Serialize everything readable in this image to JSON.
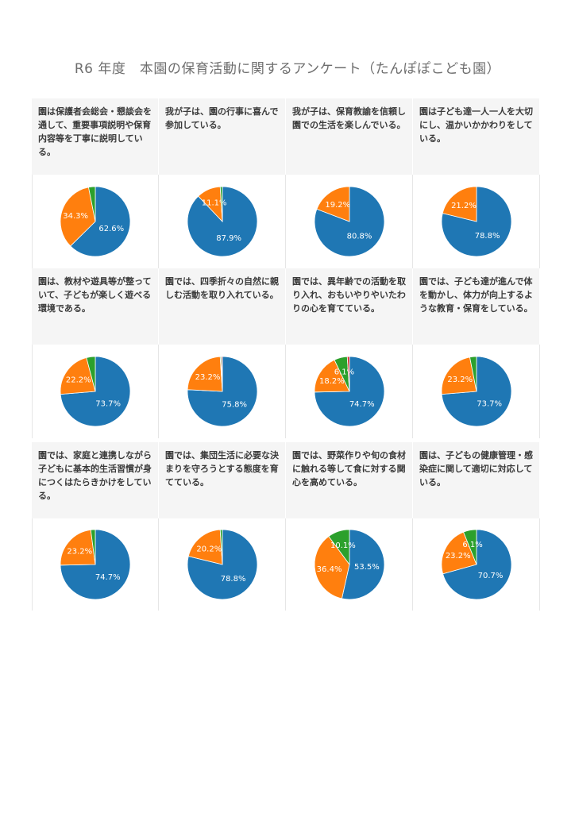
{
  "title": "R6 年度　本園の保育活動に関するアンケート（たんぽぽこども園）",
  "colors": {
    "blue": "#1f77b4",
    "orange": "#ff7f0e",
    "green": "#2ca02c",
    "red": "#d62728",
    "purple": "#9467bd"
  },
  "chart_data": [
    {
      "type": "pie",
      "question": "園は保護者会総会・懇談会を通して、重要事項説明や保育内容等を丁寧に説明している。",
      "values": [
        62.6,
        34.3,
        3.1
      ],
      "labels": [
        "62.6%",
        "34.3%",
        ""
      ]
    },
    {
      "type": "pie",
      "question": "我が子は、園の行事に喜んで参加している。",
      "values": [
        87.9,
        11.1,
        1.0
      ],
      "labels": [
        "87.9%",
        "11.1%",
        ""
      ]
    },
    {
      "type": "pie",
      "question": "我が子は、保育教諭を信頼し園での生活を楽しんでいる。",
      "values": [
        80.8,
        19.2
      ],
      "labels": [
        "80.8%",
        "19.2%"
      ]
    },
    {
      "type": "pie",
      "question": "園は子ども達一人一人を大切にし、温かいかかわりをしている。",
      "values": [
        78.8,
        21.2
      ],
      "labels": [
        "78.8%",
        "21.2%"
      ]
    },
    {
      "type": "pie",
      "question": "園は、教材や遊具等が整っていて、子どもが楽しく遊べる環境である。",
      "values": [
        73.7,
        22.2,
        4.1
      ],
      "labels": [
        "73.7%",
        "22.2%",
        ""
      ]
    },
    {
      "type": "pie",
      "question": "園では、四季折々の自然に親しむ活動を取り入れている。",
      "values": [
        75.8,
        23.2,
        0.5,
        0.5
      ],
      "labels": [
        "75.8%",
        "23.2%",
        "",
        ""
      ]
    },
    {
      "type": "pie",
      "question": "園では、異年齢での活動を取り入れ、おもいやりやいたわりの心を育てている。",
      "values": [
        74.7,
        18.2,
        6.1,
        1.0
      ],
      "labels": [
        "74.7%",
        "18.2%",
        "6.1%",
        ""
      ]
    },
    {
      "type": "pie",
      "question": "園では、子ども達が進んで体を動かし、体力が向上するような教育・保育をしている。",
      "values": [
        73.7,
        23.2,
        3.1
      ],
      "labels": [
        "73.7%",
        "23.2%",
        ""
      ]
    },
    {
      "type": "pie",
      "question": "園では、家庭と連携しながら子どもに基本的生活習慣が身につくはたらきかけをしている。",
      "values": [
        74.7,
        23.2,
        2.1
      ],
      "labels": [
        "74.7%",
        "23.2%",
        ""
      ]
    },
    {
      "type": "pie",
      "question": "園では、集団生活に必要な決まりを守ろうとする態度を育てている。",
      "values": [
        78.8,
        20.2,
        1.0
      ],
      "labels": [
        "78.8%",
        "20.2%",
        ""
      ]
    },
    {
      "type": "pie",
      "question": "園では、野菜作りや旬の食材に触れる等して食に対する関心を高めている。",
      "values": [
        53.5,
        36.4,
        10.1
      ],
      "labels": [
        "53.5%",
        "36.4%",
        "10.1%"
      ]
    },
    {
      "type": "pie",
      "question": "園は、子どもの健康管理・感染症に関して適切に対応している。",
      "values": [
        70.7,
        23.2,
        6.1
      ],
      "labels": [
        "70.7%",
        "23.2%",
        "6.1%"
      ]
    }
  ]
}
